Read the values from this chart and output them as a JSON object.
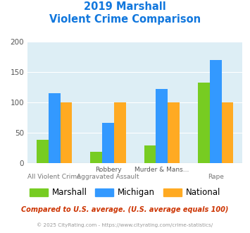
{
  "title_line1": "2019 Marshall",
  "title_line2": "Violent Crime Comparison",
  "top_labels": [
    "",
    "Robbery",
    "Murder & Mans...",
    ""
  ],
  "bot_labels": [
    "All Violent Crime",
    "Aggravated Assault",
    "",
    "Rape"
  ],
  "series": {
    "Marshall": [
      38,
      19,
      29,
      133
    ],
    "Michigan": [
      115,
      66,
      122,
      170
    ],
    "National": [
      100,
      100,
      100,
      100
    ]
  },
  "colors": {
    "Marshall": "#77cc22",
    "Michigan": "#3399ff",
    "National": "#ffaa22"
  },
  "ylim": [
    0,
    200
  ],
  "yticks": [
    0,
    50,
    100,
    150,
    200
  ],
  "bg_color": "#ddeef5",
  "title_color": "#1177dd",
  "footnote1": "Compared to U.S. average. (U.S. average equals 100)",
  "footnote1_color": "#cc3300",
  "footnote2": "© 2025 CityRating.com - https://www.cityrating.com/crime-statistics/",
  "footnote2_color": "#999999",
  "footnote2_link_color": "#3399ff"
}
